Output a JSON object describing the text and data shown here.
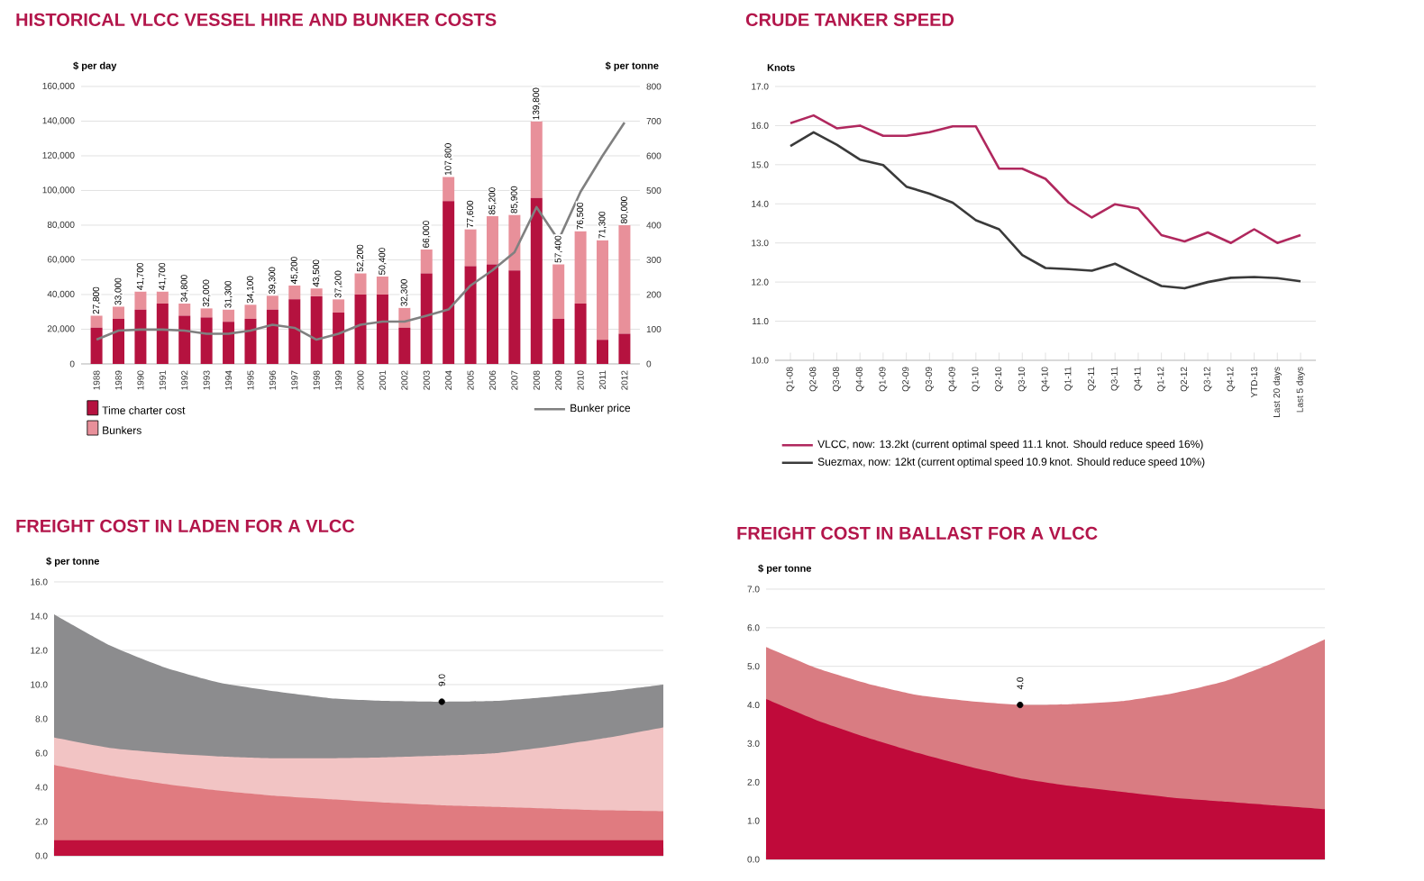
{
  "chart_data": [
    {
      "type": "bar",
      "title": "HISTORICAL VLCC VESSEL HIRE AND BUNKER COSTS",
      "ylabel": "$ per day",
      "y2label": "$ per tonne",
      "categories": [
        "1988",
        "1989",
        "1990",
        "1991",
        "1992",
        "1993",
        "1994",
        "1995",
        "1996",
        "1997",
        "1998",
        "1999",
        "2000",
        "2001",
        "2002",
        "2003",
        "2004",
        "2005",
        "2006",
        "2007",
        "2008",
        "2009",
        "2010",
        "2011",
        "2012"
      ],
      "stacked": true,
      "series": [
        {
          "name": "Time charter cost",
          "color": "#b5123f",
          "values": [
            20900,
            26000,
            31300,
            34800,
            27800,
            26800,
            24300,
            26000,
            31300,
            37200,
            39000,
            29600,
            40000,
            40000,
            20900,
            52200,
            93900,
            56300,
            57400,
            53900,
            95700,
            26000,
            34800,
            13900,
            17400
          ]
        },
        {
          "name": "Bunkers",
          "color": "#e8909a",
          "values": [
            6900,
            7000,
            10400,
            6900,
            7000,
            5200,
            7000,
            8100,
            8000,
            8000,
            4500,
            7600,
            12200,
            10400,
            11400,
            13800,
            13900,
            21300,
            27800,
            32000,
            44100,
            31400,
            41700,
            57400,
            62600
          ]
        },
        {
          "name": "Bunker price",
          "type": "line",
          "axis": "y2",
          "color": "#808080",
          "values": [
            70,
            96,
            99,
            99,
            96,
            87,
            87,
            96,
            113,
            104,
            70,
            87,
            113,
            122,
            122,
            139,
            157,
            226,
            270,
            322,
            452,
            357,
            496,
            600,
            696
          ]
        }
      ],
      "totals": [
        "27,800",
        "33,000",
        "41,700",
        "41,700",
        "34,800",
        "32,000",
        "31,300",
        "34,100",
        "39,300",
        "45,200",
        "43,500",
        "37,200",
        "52,200",
        "50,400",
        "32,300",
        "66,000",
        "107,800",
        "77,600",
        "85,200",
        "85,900",
        "139,800",
        "57,400",
        "76,500",
        "71,300",
        "80,000"
      ],
      "ylim": [
        0,
        160000
      ],
      "yticks": [
        0,
        {
          "value": 20000,
          "label": "20,000"
        },
        {
          "value": 40000,
          "label": "40,000"
        },
        {
          "value": 60000,
          "label": "60,000"
        },
        {
          "value": 80000,
          "label": "80,000"
        },
        {
          "value": 100000,
          "label": "100,000"
        },
        {
          "value": 120000,
          "label": "120,000"
        },
        {
          "value": 140000,
          "label": "140,000"
        },
        {
          "value": 160000,
          "label": "160,000"
        }
      ],
      "y2lim": [
        0,
        800
      ],
      "y2ticks": [
        0,
        100,
        200,
        300,
        400,
        500,
        600,
        700,
        800
      ],
      "grid": "y",
      "legend": "bottom"
    },
    {
      "type": "line",
      "title": "CRUDE TANKER SPEED",
      "ylabel": "Knots",
      "categories": [
        "Q1-08",
        "Q2-08",
        "Q3-08",
        "Q4-08",
        "Q1-09",
        "Q2-09",
        "Q3-09",
        "Q4-09",
        "Q1-10",
        "Q2-10",
        "Q3-10",
        "Q4-10",
        "Q1-11",
        "Q2-11",
        "Q3-11",
        "Q4-11",
        "Q1-12",
        "Q2-12",
        "Q3-12",
        "Q4-12",
        "YTD-13",
        "Last 20 days",
        "Last 5 days"
      ],
      "series": [
        {
          "name": "VLCC, now: 13.2kt (current optimal speed 11.1 knot. Should reduce speed 16%)",
          "color": "#b0285e",
          "values": [
            16.06,
            16.26,
            15.93,
            16.0,
            15.74,
            15.74,
            15.83,
            15.98,
            15.98,
            14.9,
            14.9,
            14.64,
            14.03,
            13.65,
            13.99,
            13.88,
            13.2,
            13.04,
            13.27,
            13.0,
            13.35,
            13.0,
            13.2
          ]
        },
        {
          "name": "Suezmax, now: 12kt (current optimal speed 10.9 knot. Should reduce speed 10%)",
          "color": "#3a3a3a",
          "values": [
            15.48,
            15.83,
            15.51,
            15.13,
            14.99,
            14.44,
            14.26,
            14.03,
            13.58,
            13.35,
            12.69,
            12.36,
            12.33,
            12.29,
            12.47,
            12.18,
            11.9,
            11.84,
            12.0,
            12.11,
            12.13,
            12.1,
            12.02
          ]
        }
      ],
      "ylim": [
        10,
        17
      ],
      "yticks": [
        {
          "value": 10,
          "label": "10.0"
        },
        {
          "value": 11,
          "label": "11.0"
        },
        {
          "value": 12,
          "label": "12.0"
        },
        {
          "value": 13,
          "label": "13.0"
        },
        {
          "value": 14,
          "label": "14.0"
        },
        {
          "value": 15,
          "label": "15.0"
        },
        {
          "value": 16,
          "label": "16.0"
        },
        {
          "value": 17,
          "label": "17.0"
        }
      ],
      "grid": "y",
      "legend": "bottom"
    },
    {
      "type": "area",
      "title": "FREIGHT COST IN LADEN FOR A VLCC",
      "ylabel": "$ per tonne",
      "categories": [
        null,
        null,
        null,
        null,
        null,
        null,
        null,
        null,
        null,
        null,
        null,
        null
      ],
      "series": [
        {
          "color": "#8c8c8e",
          "values": [
            14.1,
            12.3,
            11.0,
            10.1,
            9.6,
            9.2,
            9.05,
            9.0,
            9.05,
            9.3,
            9.6,
            10.0
          ]
        },
        {
          "color": "#f2c4c4",
          "values": [
            6.9,
            6.3,
            6.0,
            5.8,
            5.7,
            5.7,
            5.75,
            5.85,
            6.0,
            6.4,
            6.9,
            7.5
          ]
        },
        {
          "color": "#e07b80",
          "values": [
            5.3,
            4.7,
            4.2,
            3.8,
            3.5,
            3.3,
            3.1,
            2.95,
            2.85,
            2.75,
            2.65,
            2.6
          ]
        },
        {
          "color": "#c0103c",
          "values": [
            0.9,
            0.9,
            0.9,
            0.9,
            0.9,
            0.9,
            0.9,
            0.9,
            0.9,
            0.9,
            0.9,
            0.9
          ]
        }
      ],
      "annotations": [
        {
          "text": "9.0",
          "y": 9.0
        }
      ],
      "ylim": [
        0,
        16
      ],
      "yticks": [
        {
          "value": 0,
          "label": "0.0"
        },
        {
          "value": 2,
          "label": "2.0"
        },
        {
          "value": 4,
          "label": "4.0"
        },
        {
          "value": 6,
          "label": "6.0"
        },
        {
          "value": 8,
          "label": "8.0"
        },
        {
          "value": 10,
          "label": "10.0"
        },
        {
          "value": 12,
          "label": "12.0"
        },
        {
          "value": 14,
          "label": "14.0"
        },
        {
          "value": 16,
          "label": "16.0"
        }
      ],
      "grid": "y"
    },
    {
      "type": "area",
      "title": "FREIGHT COST IN BALLAST FOR A VLCC",
      "ylabel": "$ per tonne",
      "categories": [
        null,
        null,
        null,
        null,
        null,
        null,
        null,
        null,
        null,
        null,
        null,
        null
      ],
      "series": [
        {
          "color": "#d97c82",
          "values": [
            5.5,
            4.95,
            4.55,
            4.25,
            4.1,
            4.0,
            4.02,
            4.1,
            4.3,
            4.6,
            5.1,
            5.7
          ]
        },
        {
          "color": "#c00a3a",
          "values": [
            4.15,
            3.6,
            3.15,
            2.75,
            2.4,
            2.1,
            1.9,
            1.75,
            1.6,
            1.5,
            1.4,
            1.3
          ]
        }
      ],
      "annotations": [
        {
          "text": "4.0",
          "y": 4.0
        }
      ],
      "ylim": [
        0,
        7
      ],
      "yticks": [
        {
          "value": 0,
          "label": "0.0"
        },
        {
          "value": 1,
          "label": "1.0"
        },
        {
          "value": 2,
          "label": "2.0"
        },
        {
          "value": 3,
          "label": "3.0"
        },
        {
          "value": 4,
          "label": "4.0"
        },
        {
          "value": 5,
          "label": "5.0"
        },
        {
          "value": 6,
          "label": "6.0"
        },
        {
          "value": 7,
          "label": "7.0"
        }
      ],
      "grid": "y"
    }
  ]
}
